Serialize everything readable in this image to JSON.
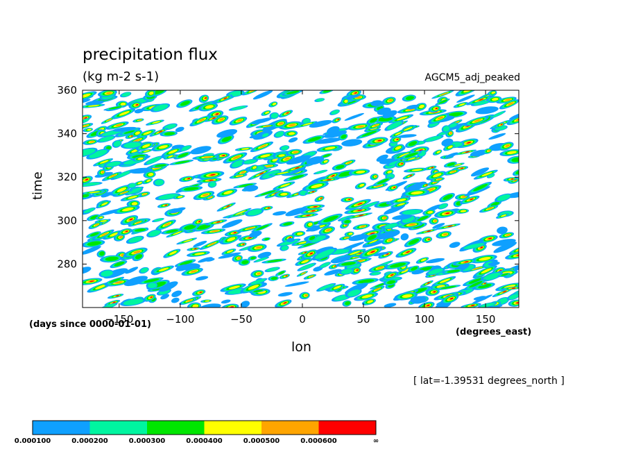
{
  "chart_data": {
    "type": "heatmap",
    "title": "precipitation flux",
    "units": "(kg m-2 s-1)",
    "annotation_right": "AGCM5_adj_peaked",
    "xlabel": "lon",
    "ylabel": "time",
    "x_units": "(degrees_east)",
    "y_units": "(days since 0000-01-01)",
    "note": "[ lat=-1.39531 degrees_north ]",
    "xlim": [
      -180,
      177.2
    ],
    "ylim": [
      260,
      360
    ],
    "x_ticks": [
      -150,
      -100,
      -50,
      0,
      50,
      100,
      150
    ],
    "y_ticks": [
      280,
      300,
      320,
      340,
      360
    ],
    "x_tick_labels": [
      "−150",
      "−100",
      "−50",
      "0",
      "50",
      "100",
      "150"
    ],
    "y_tick_labels": [
      "280",
      "300",
      "320",
      "340",
      "360"
    ],
    "levels": [
      0.0001,
      0.0002,
      0.0003,
      0.0004,
      0.0005,
      0.0006
    ],
    "level_labels": [
      "0.000100",
      "0.000200",
      "0.000300",
      "0.000400",
      "0.000500",
      "0.000600",
      "∞"
    ],
    "colors": [
      "#0fa0ff",
      "#00f5a0",
      "#00e600",
      "#ffff00",
      "#ffa500",
      "#ff0000"
    ],
    "grid": false,
    "legend_position": "bottom-left colorbar"
  }
}
